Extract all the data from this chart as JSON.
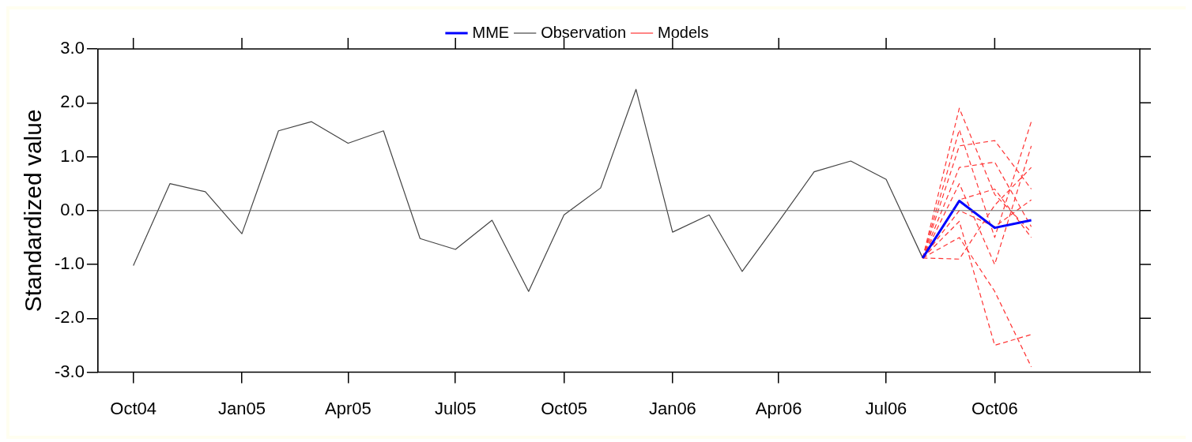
{
  "chart_data": {
    "type": "line",
    "ylabel": "Standardized value",
    "xlim": [
      "2004-09",
      "2007-02"
    ],
    "xticks": [
      {
        "value": "2004-10",
        "label": "Oct04"
      },
      {
        "value": "2005-01",
        "label": "Jan05"
      },
      {
        "value": "2005-04",
        "label": "Apr05"
      },
      {
        "value": "2005-07",
        "label": "Jul05"
      },
      {
        "value": "2005-10",
        "label": "Oct05"
      },
      {
        "value": "2006-01",
        "label": "Jan06"
      },
      {
        "value": "2006-04",
        "label": "Apr06"
      },
      {
        "value": "2006-07",
        "label": "Jul06"
      },
      {
        "value": "2006-10",
        "label": "Oct06"
      }
    ],
    "ylim": [
      -3,
      3
    ],
    "yticks": [
      {
        "value": -3,
        "label": "-3.0"
      },
      {
        "value": -2,
        "label": "-2.0"
      },
      {
        "value": -1,
        "label": "-1.0"
      },
      {
        "value": 0,
        "label": "0.0"
      },
      {
        "value": 1,
        "label": "1.0"
      },
      {
        "value": 2,
        "label": "2.0"
      },
      {
        "value": 3,
        "label": "3.0"
      }
    ],
    "grid": false,
    "legend": "top",
    "marker": "none",
    "ref_lines": [
      {
        "axis": "y",
        "value": 0,
        "color": "#666666"
      }
    ],
    "series": [
      {
        "name": "MME",
        "color": "#0000ff",
        "line_style": "solid",
        "x": [
          "2006-08",
          "2006-09",
          "2006-10",
          "2006-11"
        ],
        "values": [
          -0.88,
          0.18,
          -0.32,
          -0.18
        ]
      },
      {
        "name": "Observation",
        "color": "#444444",
        "line_style": "solid",
        "x": [
          "2004-10",
          "2004-11",
          "2004-12",
          "2005-01",
          "2005-02",
          "2005-03",
          "2005-04",
          "2005-05",
          "2005-06",
          "2005-07",
          "2005-08",
          "2005-09",
          "2005-10",
          "2005-11",
          "2005-12",
          "2006-01",
          "2006-02",
          "2006-03",
          "2006-04",
          "2006-05",
          "2006-06",
          "2006-07",
          "2006-08"
        ],
        "values": [
          -1.02,
          0.5,
          0.35,
          -0.43,
          1.48,
          1.65,
          1.25,
          1.48,
          -0.52,
          -0.72,
          -0.18,
          -1.5,
          -0.08,
          0.42,
          2.25,
          -0.4,
          -0.08,
          -1.13,
          -0.2,
          0.72,
          0.92,
          0.58,
          -0.88
        ]
      },
      {
        "name": "Models",
        "color": "#ff3333",
        "line_style": "dashed",
        "x": [
          "2006-08",
          "2006-09",
          "2006-10",
          "2006-11"
        ],
        "values": [
          -0.88,
          1.9,
          0.3,
          -0.4
        ]
      },
      {
        "color": "#ff3333",
        "line_style": "dashed",
        "x": [
          "2006-08",
          "2006-09",
          "2006-10",
          "2006-11"
        ],
        "values": [
          -0.88,
          1.5,
          -0.5,
          1.65
        ]
      },
      {
        "color": "#ff3333",
        "line_style": "dashed",
        "x": [
          "2006-08",
          "2006-09",
          "2006-10",
          "2006-11"
        ],
        "values": [
          -0.88,
          1.2,
          1.3,
          0.4
        ]
      },
      {
        "color": "#ff3333",
        "line_style": "dashed",
        "x": [
          "2006-08",
          "2006-09",
          "2006-10",
          "2006-11"
        ],
        "values": [
          -0.88,
          0.8,
          0.9,
          -0.3
        ]
      },
      {
        "color": "#ff3333",
        "line_style": "dashed",
        "x": [
          "2006-08",
          "2006-09",
          "2006-10",
          "2006-11"
        ],
        "values": [
          -0.88,
          0.5,
          -1.0,
          1.2
        ]
      },
      {
        "color": "#ff3333",
        "line_style": "dashed",
        "x": [
          "2006-08",
          "2006-09",
          "2006-10",
          "2006-11"
        ],
        "values": [
          -0.88,
          0.2,
          0.4,
          -0.5
        ]
      },
      {
        "color": "#ff3333",
        "line_style": "dashed",
        "x": [
          "2006-08",
          "2006-09",
          "2006-10",
          "2006-11"
        ],
        "values": [
          -0.88,
          -0.2,
          -2.5,
          -2.3
        ]
      },
      {
        "color": "#ff3333",
        "line_style": "dashed",
        "x": [
          "2006-08",
          "2006-09",
          "2006-10",
          "2006-11"
        ],
        "values": [
          -0.88,
          -0.5,
          -1.5,
          -2.9
        ]
      },
      {
        "color": "#ff3333",
        "line_style": "dashed",
        "x": [
          "2006-08",
          "2006-09",
          "2006-10",
          "2006-11"
        ],
        "values": [
          -0.88,
          -0.9,
          0.1,
          0.8
        ]
      },
      {
        "color": "#ff3333",
        "line_style": "dashed",
        "x": [
          "2006-08",
          "2006-09",
          "2006-10",
          "2006-11"
        ],
        "values": [
          -0.88,
          0.0,
          -0.3,
          0.2
        ]
      }
    ]
  }
}
